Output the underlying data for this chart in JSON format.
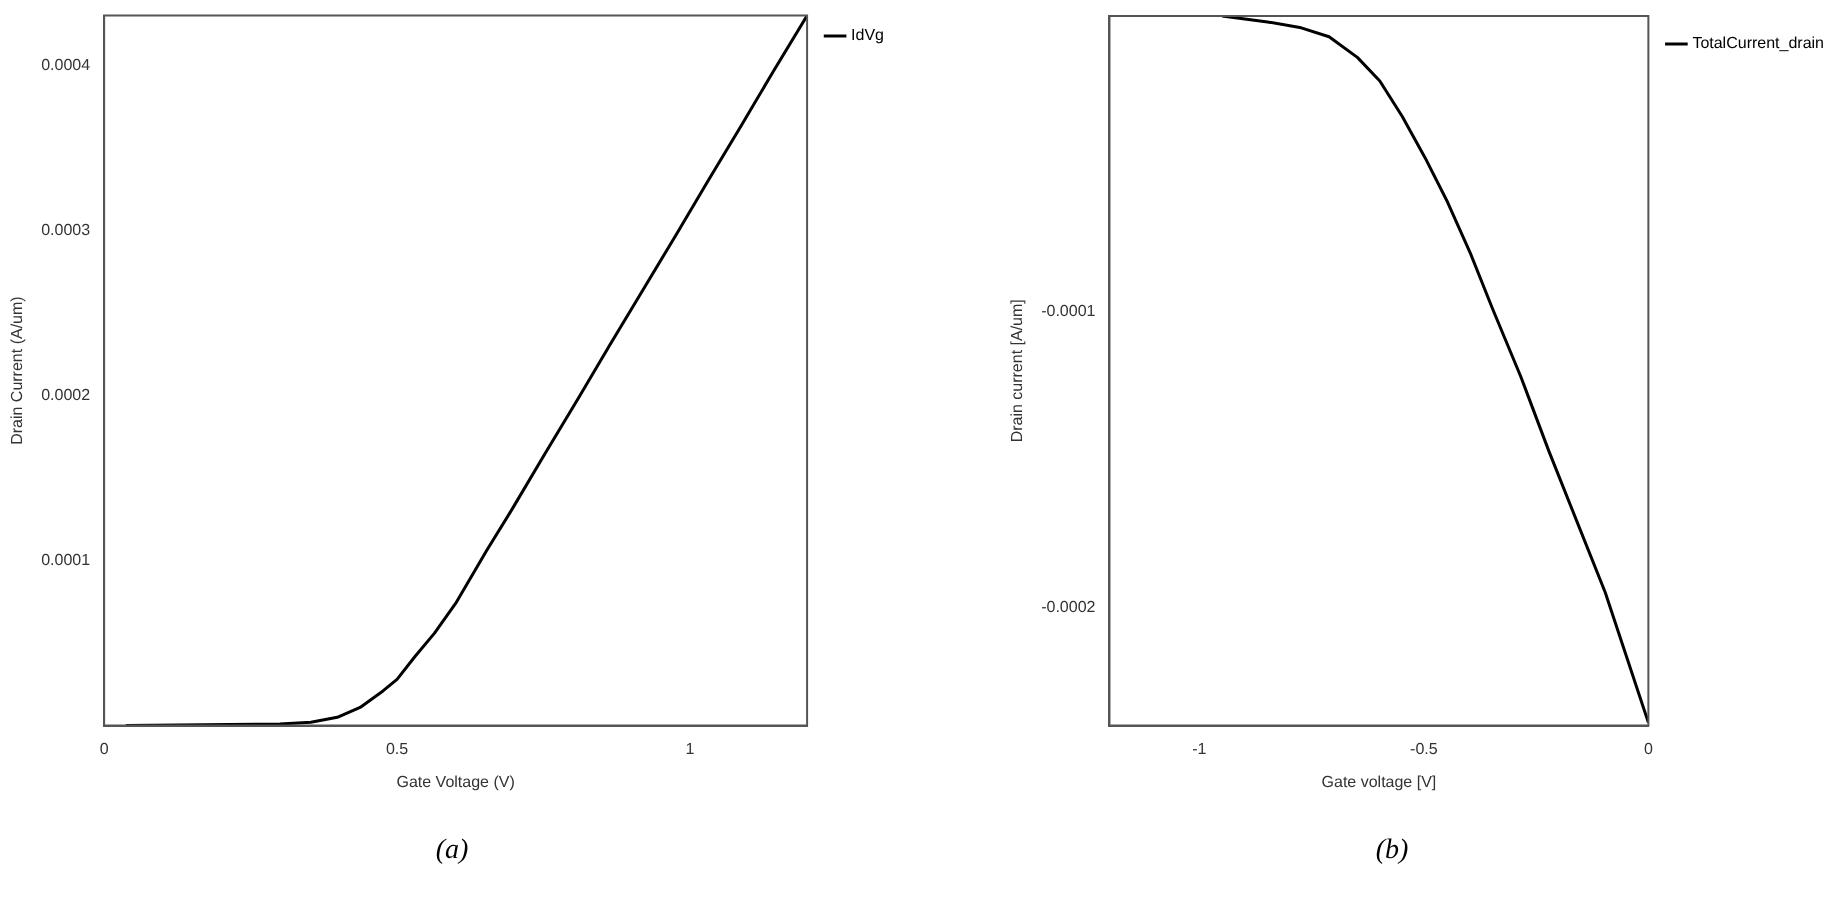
{
  "chart_data": [
    {
      "type": "line",
      "xlabel": "Gate Voltage (V)",
      "ylabel": "Drain Current (A/um)",
      "annotations": [
        "(a)"
      ],
      "series": [
        {
          "name": "IdVg",
          "color": "#000000",
          "x": [
            0.037,
            0.3,
            0.353,
            0.398,
            0.437,
            0.476,
            0.5,
            0.531,
            0.564,
            0.6,
            0.653,
            0.698,
            0.753,
            0.809,
            0.864,
            0.92,
            0.976,
            1.031,
            1.087,
            1.142,
            1.2
          ],
          "values": [
            0,
            1e-06,
            2e-06,
            5e-06,
            1.1e-05,
            2.1e-05,
            2.8e-05,
            4.2e-05,
            5.6e-05,
            7.4e-05,
            0.000106,
            0.000132,
            0.000165,
            0.000198,
            0.000231,
            0.000264,
            0.000297,
            0.00033,
            0.000363,
            0.000396,
            0.00043
          ]
        }
      ],
      "xlim": [
        0,
        1.2
      ],
      "xticks": [
        0,
        0.5,
        1
      ],
      "ylim": [
        0,
        0.00043
      ],
      "yticks": [
        0.0001,
        0.0002,
        0.0003,
        0.0004
      ],
      "grid": false,
      "legend": "top right",
      "marker": "none",
      "line_style": "solid"
    },
    {
      "type": "line",
      "xlabel": "Gate voltage [V]",
      "ylabel": "Drain current [A/um]",
      "annotations": [
        "(b)"
      ],
      "series": [
        {
          "name": "TotalCurrent_drain",
          "color": "#000000",
          "x": [
            -0.949,
            -0.848,
            -0.773,
            -0.711,
            -0.648,
            -0.598,
            -0.548,
            -0.497,
            -0.447,
            -0.397,
            -0.347,
            -0.284,
            -0.222,
            -0.159,
            -0.096,
            0
          ],
          "values": [
            0,
            -2e-06,
            -4e-06,
            -7e-06,
            -1.4e-05,
            -2.2e-05,
            -3.4e-05,
            -4.8e-05,
            -6.3e-05,
            -8e-05,
            -9.9e-05,
            -0.000122,
            -0.000147,
            -0.000171,
            -0.000195,
            -0.000239
          ]
        }
      ],
      "xlim": [
        -1.2,
        0
      ],
      "xticks": [
        -1,
        -0.5,
        0
      ],
      "ylim": [
        -0.00024,
        0
      ],
      "yticks": [
        -0.0001,
        -0.0002
      ],
      "grid": false,
      "legend": "top right",
      "marker": "none",
      "line_style": "solid"
    }
  ]
}
